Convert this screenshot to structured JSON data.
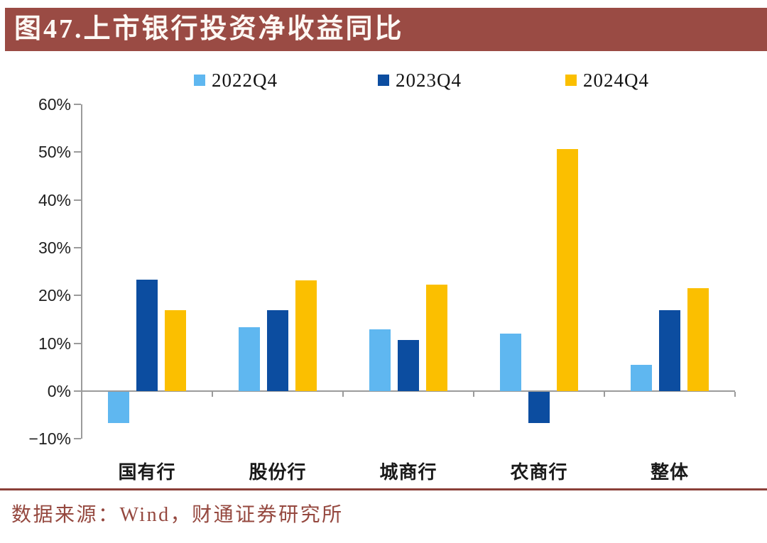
{
  "header": {
    "title": "图47.上市银行投资净收益同比"
  },
  "colors": {
    "brand": "#9A4B44",
    "divider": "#8A3F38",
    "source_text": "#95483F",
    "axis": "#9B9B9B",
    "series_2022": "#5FB7F0",
    "series_2023": "#0C4DA0",
    "series_2024": "#FBBF00"
  },
  "chart_data": {
    "type": "bar",
    "title": "图47.上市银行投资净收益同比",
    "categories": [
      "国有行",
      "股份行",
      "城商行",
      "农商行",
      "整体"
    ],
    "series": [
      {
        "name": "2022Q4",
        "color": "#5FB7F0",
        "values": [
          -6.6,
          13.4,
          12.9,
          12.0,
          5.5
        ]
      },
      {
        "name": "2023Q4",
        "color": "#0C4DA0",
        "values": [
          23.3,
          17.0,
          10.7,
          -6.5,
          16.9
        ]
      },
      {
        "name": "2024Q4",
        "color": "#FBBF00",
        "values": [
          16.9,
          23.2,
          22.3,
          50.6,
          21.5
        ]
      }
    ],
    "xlabel": "",
    "ylabel": "",
    "ylim": [
      -10,
      60
    ],
    "ytick_labels": [
      "60%",
      "50%",
      "40%",
      "30%",
      "20%",
      "10%",
      "0%",
      "−10%"
    ],
    "grid": false,
    "legend_position": "top"
  },
  "footer": {
    "source": "数据来源：Wind，财通证券研究所"
  }
}
